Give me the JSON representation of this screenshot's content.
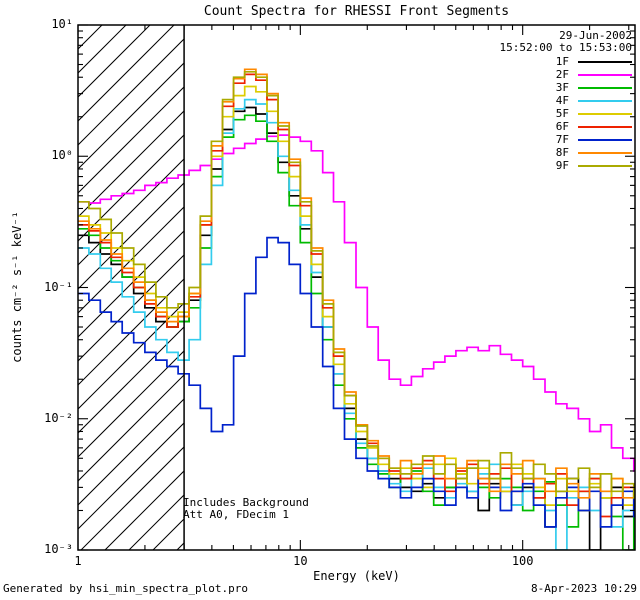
{
  "title": "Count Spectra for RHESSI Front Segments",
  "header": {
    "date": "29-Jun-2002",
    "time_range": "15:52:00 to 15:53:00"
  },
  "annotations": {
    "line1": "Includes Background",
    "line2": "Att A0, FDecim 1"
  },
  "footer": {
    "generated_by": "Generated by hsi_min_spectra_plot.pro",
    "timestamp": "8-Apr-2023 10:29"
  },
  "axes": {
    "x": {
      "label": "Energy (keV)",
      "ticks": [
        "1",
        "10",
        "100"
      ],
      "tick_values": [
        1,
        10,
        100
      ]
    },
    "y": {
      "label": "counts cm⁻² s⁻¹ keV⁻¹",
      "ticks": [
        "10⁻³",
        "10⁻²",
        "10⁻¹",
        "10⁰",
        "10¹"
      ],
      "tick_values": [
        0.001,
        0.01,
        0.1,
        1,
        10
      ]
    }
  },
  "chart_data": {
    "type": "line",
    "step": true,
    "xscale": "log",
    "yscale": "log",
    "xlim": [
      1,
      320
    ],
    "ylim": [
      0.001,
      10
    ],
    "title": "Count Spectra for RHESSI Front Segments",
    "xlabel": "Energy (keV)",
    "ylabel": "counts cm⁻² s⁻¹ keV⁻¹",
    "legend_position": "top-right",
    "hatch_region": [
      1,
      3
    ],
    "x": [
      1.0,
      1.12,
      1.26,
      1.41,
      1.58,
      1.78,
      2.0,
      2.24,
      2.51,
      2.82,
      3.16,
      3.55,
      3.98,
      4.47,
      5.01,
      5.62,
      6.31,
      7.08,
      7.94,
      8.91,
      10.0,
      11.2,
      12.6,
      14.1,
      15.8,
      17.8,
      20.0,
      22.4,
      25.1,
      28.2,
      31.6,
      35.5,
      39.8,
      44.7,
      50.1,
      56.2,
      63.1,
      70.8,
      79.4,
      89.1,
      100,
      112,
      126,
      141,
      158,
      178,
      200,
      224,
      251,
      282,
      316
    ],
    "series": [
      {
        "name": "1F",
        "color": "#000000",
        "values": [
          0.25,
          0.22,
          0.18,
          0.15,
          0.12,
          0.09,
          0.07,
          0.055,
          0.05,
          0.055,
          0.08,
          0.25,
          0.8,
          1.6,
          2.2,
          2.35,
          2.1,
          1.5,
          0.9,
          0.5,
          0.28,
          0.12,
          0.05,
          0.022,
          0.012,
          0.007,
          0.005,
          0.004,
          0.0035,
          0.003,
          0.0028,
          0.0032,
          0.0025,
          0.003,
          0.0035,
          0.0028,
          0.002,
          0.0032,
          0.0028,
          0.0022,
          0.003,
          0.0025,
          0.0015,
          0.0028,
          0.0035,
          0.002,
          0.001,
          0.0025,
          0.003,
          0.0018,
          0.0022
        ]
      },
      {
        "name": "2F",
        "color": "#ff00ff",
        "values": [
          0.45,
          0.44,
          0.47,
          0.5,
          0.52,
          0.55,
          0.6,
          0.63,
          0.68,
          0.72,
          0.78,
          0.85,
          0.95,
          1.05,
          1.15,
          1.25,
          1.35,
          1.42,
          1.45,
          1.4,
          1.3,
          1.1,
          0.75,
          0.45,
          0.22,
          0.1,
          0.05,
          0.028,
          0.02,
          0.018,
          0.021,
          0.024,
          0.027,
          0.03,
          0.033,
          0.035,
          0.033,
          0.036,
          0.031,
          0.028,
          0.025,
          0.02,
          0.016,
          0.013,
          0.012,
          0.01,
          0.008,
          0.009,
          0.006,
          0.005,
          0.004
        ]
      },
      {
        "name": "3F",
        "color": "#00bb00",
        "values": [
          0.28,
          0.25,
          0.2,
          0.16,
          0.12,
          0.1,
          0.08,
          0.06,
          0.05,
          0.055,
          0.07,
          0.2,
          0.7,
          1.4,
          1.9,
          2.05,
          1.85,
          1.3,
          0.75,
          0.42,
          0.22,
          0.09,
          0.04,
          0.018,
          0.01,
          0.006,
          0.0045,
          0.0038,
          0.003,
          0.0035,
          0.004,
          0.0028,
          0.0022,
          0.003,
          0.0038,
          0.0042,
          0.003,
          0.0025,
          0.0035,
          0.003,
          0.002,
          0.0028,
          0.0033,
          0.0022,
          0.0015,
          0.0028,
          0.0035,
          0.0025,
          0.0018,
          0.001,
          0.002
        ]
      },
      {
        "name": "4F",
        "color": "#33ccee",
        "values": [
          0.2,
          0.18,
          0.14,
          0.11,
          0.085,
          0.065,
          0.05,
          0.04,
          0.032,
          0.028,
          0.04,
          0.15,
          0.6,
          1.5,
          2.3,
          2.7,
          2.5,
          1.8,
          1.0,
          0.55,
          0.3,
          0.13,
          0.05,
          0.022,
          0.011,
          0.0065,
          0.005,
          0.004,
          0.0032,
          0.0028,
          0.0035,
          0.0042,
          0.003,
          0.0025,
          0.0032,
          0.0028,
          0.0038,
          0.0045,
          0.003,
          0.0022,
          0.0028,
          0.0035,
          0.002,
          0.001,
          0.0025,
          0.003,
          0.002,
          0.0028,
          0.0015,
          0.002,
          0.0025
        ]
      },
      {
        "name": "5F",
        "color": "#ddcc00",
        "values": [
          0.35,
          0.3,
          0.26,
          0.2,
          0.16,
          0.12,
          0.09,
          0.07,
          0.06,
          0.065,
          0.09,
          0.3,
          1.0,
          2.0,
          2.9,
          3.4,
          3.1,
          2.2,
          1.3,
          0.7,
          0.35,
          0.15,
          0.06,
          0.026,
          0.013,
          0.008,
          0.006,
          0.0045,
          0.0038,
          0.0042,
          0.0035,
          0.003,
          0.0045,
          0.005,
          0.0038,
          0.0032,
          0.0042,
          0.0035,
          0.0028,
          0.0045,
          0.0038,
          0.003,
          0.0022,
          0.0035,
          0.0028,
          0.002,
          0.0032,
          0.0025,
          0.0035,
          0.0022,
          0.0028
        ]
      },
      {
        "name": "6F",
        "color": "#ee2200",
        "values": [
          0.3,
          0.27,
          0.22,
          0.17,
          0.13,
          0.1,
          0.075,
          0.06,
          0.05,
          0.06,
          0.085,
          0.3,
          1.1,
          2.4,
          3.6,
          4.2,
          3.8,
          2.7,
          1.6,
          0.85,
          0.42,
          0.18,
          0.07,
          0.03,
          0.015,
          0.009,
          0.0065,
          0.005,
          0.004,
          0.0035,
          0.0042,
          0.0048,
          0.0035,
          0.0028,
          0.004,
          0.0045,
          0.0032,
          0.0038,
          0.0042,
          0.0028,
          0.0035,
          0.0025,
          0.0032,
          0.0038,
          0.0022,
          0.0028,
          0.0035,
          0.0018,
          0.0025,
          0.003,
          0.002
        ]
      },
      {
        "name": "7F",
        "color": "#0022cc",
        "values": [
          0.09,
          0.08,
          0.065,
          0.055,
          0.045,
          0.038,
          0.032,
          0.028,
          0.025,
          0.022,
          0.018,
          0.012,
          0.008,
          0.009,
          0.03,
          0.09,
          0.17,
          0.24,
          0.22,
          0.15,
          0.09,
          0.05,
          0.025,
          0.012,
          0.007,
          0.005,
          0.004,
          0.0035,
          0.003,
          0.0025,
          0.003,
          0.0035,
          0.0028,
          0.0022,
          0.003,
          0.0025,
          0.0035,
          0.003,
          0.002,
          0.0028,
          0.0032,
          0.0022,
          0.0015,
          0.0025,
          0.003,
          0.002,
          0.0028,
          0.0015,
          0.0022,
          0.0028,
          0.0018
        ]
      },
      {
        "name": "8F",
        "color": "#ff8800",
        "values": [
          0.32,
          0.28,
          0.23,
          0.18,
          0.14,
          0.11,
          0.08,
          0.065,
          0.055,
          0.06,
          0.09,
          0.32,
          1.2,
          2.6,
          3.9,
          4.6,
          4.2,
          3.0,
          1.8,
          0.95,
          0.48,
          0.2,
          0.08,
          0.034,
          0.016,
          0.009,
          0.0068,
          0.0052,
          0.0042,
          0.0048,
          0.0038,
          0.0045,
          0.0052,
          0.0035,
          0.0042,
          0.0048,
          0.0035,
          0.0028,
          0.0045,
          0.0038,
          0.0048,
          0.0035,
          0.0028,
          0.0042,
          0.0032,
          0.0025,
          0.0038,
          0.0028,
          0.0035,
          0.0025,
          0.003
        ]
      },
      {
        "name": "9F",
        "color": "#aaaa00",
        "values": [
          0.45,
          0.4,
          0.33,
          0.26,
          0.2,
          0.15,
          0.11,
          0.085,
          0.07,
          0.075,
          0.1,
          0.35,
          1.3,
          2.7,
          4.0,
          4.4,
          4.0,
          2.9,
          1.7,
          0.9,
          0.45,
          0.19,
          0.075,
          0.032,
          0.015,
          0.0088,
          0.0062,
          0.005,
          0.0042,
          0.0038,
          0.0045,
          0.0052,
          0.0038,
          0.0045,
          0.0035,
          0.0042,
          0.0048,
          0.0035,
          0.0055,
          0.0042,
          0.0035,
          0.0045,
          0.0038,
          0.0028,
          0.0035,
          0.0042,
          0.003,
          0.0038,
          0.0028,
          0.0032,
          0.0025
        ]
      }
    ]
  }
}
